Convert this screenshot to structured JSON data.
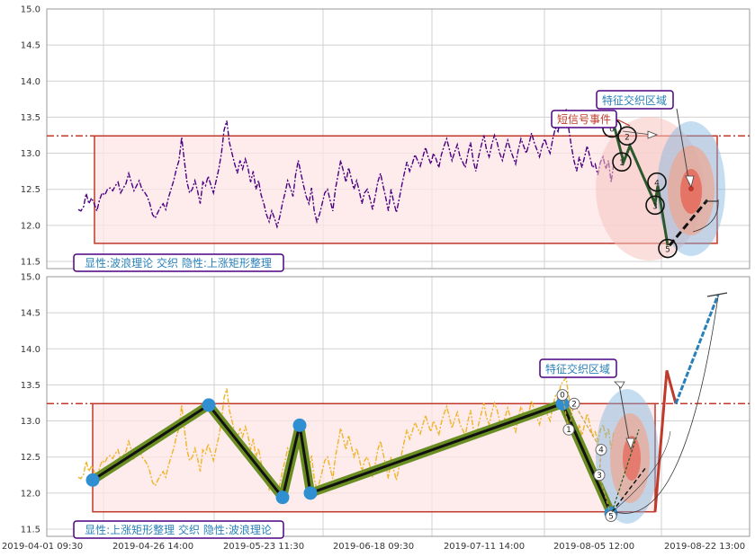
{
  "chart_data": [
    {
      "type": "line",
      "title": "",
      "ylim": [
        11.4,
        15.0
      ],
      "yticks": [
        "11.5",
        "12.0",
        "12.5",
        "13.0",
        "13.5",
        "14.0",
        "14.5",
        "15.0"
      ],
      "ytick_values": [
        11.5,
        12.0,
        12.5,
        13.0,
        13.5,
        14.0,
        14.5,
        15.0
      ],
      "resistance_level": 13.24,
      "rectangle": {
        "y_low": 11.75,
        "y_high": 13.24
      },
      "series": [
        {
          "color": "#4b0082",
          "style": "dash-dot",
          "values": [
            12.22,
            12.2,
            12.26,
            12.44,
            12.3,
            12.38,
            12.3,
            12.2,
            12.35,
            12.45,
            12.42,
            12.5,
            12.52,
            12.48,
            12.55,
            12.6,
            12.45,
            12.52,
            12.58,
            12.72,
            12.6,
            12.48,
            12.55,
            12.62,
            12.5,
            12.46,
            12.4,
            12.3,
            12.15,
            12.1,
            12.18,
            12.25,
            12.3,
            12.22,
            12.38,
            12.5,
            12.62,
            12.78,
            12.9,
            13.22,
            12.9,
            12.6,
            12.45,
            12.5,
            12.62,
            12.48,
            12.3,
            12.6,
            12.55,
            12.68,
            12.56,
            12.45,
            12.62,
            12.78,
            13.0,
            13.32,
            13.45,
            13.15,
            13.0,
            12.85,
            12.72,
            12.9,
            12.78,
            12.92,
            12.8,
            12.6,
            12.75,
            12.5,
            12.62,
            12.42,
            12.3,
            12.15,
            12.05,
            12.2,
            12.1,
            11.98,
            12.12,
            12.3,
            12.45,
            12.62,
            12.52,
            12.4,
            12.7,
            12.9,
            12.72,
            12.55,
            12.4,
            12.3,
            12.52,
            12.2,
            12.05,
            12.15,
            12.3,
            12.45,
            12.5,
            12.35,
            12.2,
            12.5,
            12.7,
            12.9,
            12.75,
            12.6,
            12.8,
            12.65,
            12.5,
            12.62,
            12.48,
            12.3,
            12.45,
            12.5,
            12.38,
            12.22,
            12.4,
            12.6,
            12.72,
            12.55,
            12.38,
            12.2,
            12.5,
            12.32,
            12.18,
            12.35,
            12.55,
            12.72,
            12.88,
            12.75,
            12.85,
            12.98,
            12.9,
            12.82,
            12.95,
            13.08,
            12.95,
            12.85,
            13.0,
            12.92,
            12.8,
            12.98,
            13.1,
            13.2,
            13.05,
            12.9,
            13.02,
            13.12,
            12.95,
            12.88,
            12.8,
            13.0,
            13.15,
            12.9,
            12.75,
            12.95,
            13.1,
            13.25,
            13.05,
            12.95,
            13.12,
            13.25,
            13.15,
            13.0,
            12.9,
            13.05,
            13.18,
            13.05,
            12.95,
            12.85,
            13.05,
            13.2,
            13.1,
            13.0,
            13.12,
            13.28,
            13.15,
            13.05,
            12.95,
            13.1,
            13.2,
            13.08,
            13.0,
            13.2,
            13.35,
            13.3,
            13.5,
            13.55,
            13.6,
            13.35,
            13.1,
            12.9,
            12.75,
            12.95,
            12.8,
            12.95,
            13.1,
            12.95,
            12.8,
            12.85,
            12.7,
            12.88,
            12.95,
            12.78,
            12.9,
            12.6,
            12.85
          ]
        }
      ],
      "wave": {
        "labels": [
          "0",
          "1",
          "2",
          "3",
          "4",
          "5"
        ],
        "values": [
          13.35,
          12.88,
          13.24,
          12.28,
          12.6,
          11.68
        ],
        "projection": [
          11.72,
          12.35
        ]
      },
      "annotations": [
        {
          "text": "短信号事件",
          "color": "#c0392b"
        },
        {
          "text": "特征交织区域",
          "color": "#2980b9"
        },
        {
          "text": "显性:波浪理论 交织 隐性:上涨矩形整理",
          "color": "#2980b9"
        }
      ]
    },
    {
      "type": "line",
      "title": "",
      "ylim": [
        11.4,
        15.0
      ],
      "yticks": [
        "11.5",
        "12.0",
        "12.5",
        "13.0",
        "13.5",
        "14.0",
        "14.5",
        "15.0"
      ],
      "ytick_values": [
        11.5,
        12.0,
        12.5,
        13.0,
        13.5,
        14.0,
        14.5,
        15.0
      ],
      "xticks": [
        "2019-04-01 09:30",
        "2019-04-26 14:00",
        "2019-05-23 11:30",
        "2019-06-18 09:30",
        "2019-07-11 14:00",
        "2019-08-05 12:00",
        "2019-08-22 13:00"
      ],
      "resistance_level": 13.24,
      "rectangle": {
        "y_low": 11.74,
        "y_high": 13.24
      },
      "series": [
        {
          "color": "#f0b429",
          "style": "dash-dot",
          "values": [
            12.22,
            12.2,
            12.26,
            12.44,
            12.3,
            12.38,
            12.3,
            12.2,
            12.35,
            12.45,
            12.42,
            12.5,
            12.52,
            12.48,
            12.55,
            12.6,
            12.45,
            12.52,
            12.58,
            12.72,
            12.6,
            12.48,
            12.55,
            12.62,
            12.5,
            12.46,
            12.4,
            12.3,
            12.15,
            12.1,
            12.18,
            12.25,
            12.3,
            12.22,
            12.38,
            12.5,
            12.62,
            12.78,
            12.9,
            13.22,
            12.9,
            12.6,
            12.45,
            12.5,
            12.62,
            12.48,
            12.3,
            12.6,
            12.55,
            12.68,
            12.56,
            12.45,
            12.62,
            12.78,
            13.0,
            13.32,
            13.45,
            13.15,
            13.0,
            12.85,
            12.72,
            12.9,
            12.78,
            12.92,
            12.8,
            12.6,
            12.75,
            12.5,
            12.62,
            12.42,
            12.3,
            12.15,
            12.05,
            12.2,
            12.1,
            11.98,
            12.12,
            12.3,
            12.45,
            12.62,
            12.52,
            12.4,
            12.7,
            12.9,
            12.72,
            12.55,
            12.4,
            12.3,
            12.52,
            12.2,
            12.05,
            12.15,
            12.3,
            12.45,
            12.5,
            12.35,
            12.2,
            12.5,
            12.7,
            12.9,
            12.75,
            12.6,
            12.8,
            12.65,
            12.5,
            12.62,
            12.48,
            12.3,
            12.45,
            12.5,
            12.38,
            12.22,
            12.4,
            12.6,
            12.72,
            12.55,
            12.38,
            12.2,
            12.5,
            12.32,
            12.18,
            12.35,
            12.55,
            12.72,
            12.88,
            12.75,
            12.85,
            12.98,
            12.9,
            12.82,
            12.95,
            13.08,
            12.95,
            12.85,
            13.0,
            12.92,
            12.8,
            12.98,
            13.1,
            13.2,
            13.05,
            12.9,
            13.02,
            13.12,
            12.95,
            12.88,
            12.8,
            13.0,
            13.15,
            12.9,
            12.75,
            12.95,
            13.1,
            13.25,
            13.05,
            12.95,
            13.12,
            13.25,
            13.15,
            13.0,
            12.9,
            13.05,
            13.18,
            13.05,
            12.95,
            12.85,
            13.05,
            13.2,
            13.1,
            13.0,
            13.12,
            13.28,
            13.15,
            13.05,
            12.95,
            13.1,
            13.2,
            13.08,
            13.0,
            13.2,
            13.35,
            13.3,
            13.5,
            13.55,
            13.6,
            13.35,
            13.1,
            12.9,
            12.75,
            12.95,
            12.8,
            12.95,
            13.1,
            12.95,
            12.8,
            12.85,
            12.7,
            12.88,
            12.95,
            12.78,
            12.9,
            12.6,
            12.85
          ]
        }
      ],
      "zigzag": {
        "values": [
          12.18,
          13.22,
          11.94,
          12.94,
          12.0,
          13.24,
          11.72
        ]
      },
      "wave": {
        "labels": [
          "0",
          "1",
          "2",
          "4",
          "3",
          "5"
        ],
        "values": [
          13.36,
          12.88,
          13.24,
          12.6,
          12.25,
          11.68
        ]
      },
      "projection": {
        "values": [
          11.74,
          13.7,
          13.24,
          14.75
        ]
      },
      "annotations": [
        {
          "text": "特征交织区域",
          "color": "#2980b9"
        },
        {
          "text": "显性:上涨矩形整理 交织 隐性:波浪理论",
          "color": "#2980b9"
        }
      ]
    }
  ]
}
